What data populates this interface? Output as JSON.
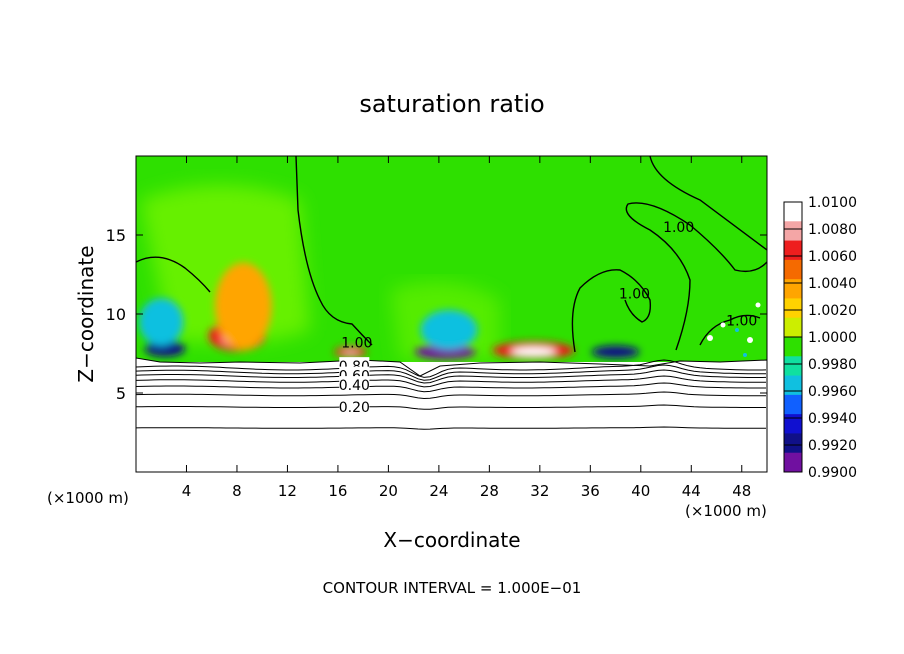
{
  "chart_data": {
    "type": "heatmap",
    "title": "saturation ratio",
    "xlabel": "X−coordinate",
    "ylabel": "Z−coordinate",
    "x_unit_left": "(×1000 m)",
    "x_unit_right": "(×1000 m)",
    "xlim": [
      0,
      50
    ],
    "ylim": [
      0,
      20
    ],
    "x_ticks": [
      4,
      8,
      12,
      16,
      20,
      24,
      28,
      32,
      36,
      40,
      44,
      48
    ],
    "y_ticks": [
      5,
      10,
      15
    ],
    "footer": "CONTOUR INTERVAL = 1.000E−01",
    "colorbar": {
      "min": 0.99,
      "max": 1.01,
      "labels": [
        "1.0100",
        "1.0080",
        "1.0060",
        "1.0040",
        "1.0020",
        "1.0000",
        "0.9980",
        "0.9960",
        "0.9940",
        "0.9920",
        "0.9900"
      ],
      "colors": [
        "#ffffff",
        "#f4a6a6",
        "#ee1e1e",
        "#f56a00",
        "#ffa500",
        "#ffd200",
        "#ccee00",
        "#2ee000",
        "#10e0a0",
        "#10c0e0",
        "#1060ff",
        "#1010d0",
        "#101088",
        "#7010a0"
      ]
    },
    "contour_labels": [
      {
        "text": "1.00",
        "x": 17.5,
        "z": 8.2
      },
      {
        "text": "1.00",
        "x": 43.0,
        "z": 15.5
      },
      {
        "text": "1.00",
        "x": 39.5,
        "z": 11.3
      },
      {
        "text": "1.00",
        "x": 48.0,
        "z": 9.6
      },
      {
        "text": "0.80",
        "x": 17.3,
        "z": 6.7
      },
      {
        "text": "0.60",
        "x": 17.3,
        "z": 6.1
      },
      {
        "text": "0.40",
        "x": 17.3,
        "z": 5.5
      },
      {
        "text": "0.20",
        "x": 17.3,
        "z": 4.1
      }
    ],
    "hotspots": [
      {
        "x": 8.0,
        "z": 8.6,
        "v": 1.0072,
        "w": 4.5,
        "h": 1.9
      },
      {
        "x": 8.5,
        "z": 10.5,
        "v": 1.0035,
        "w": 4.5,
        "h": 5.5
      },
      {
        "x": 31.5,
        "z": 7.7,
        "v": 1.0075,
        "w": 6.5,
        "h": 1.1
      },
      {
        "x": 17.0,
        "z": 7.6,
        "v": 1.0065,
        "w": 2.5,
        "h": 0.7
      },
      {
        "x": 2.3,
        "z": 7.8,
        "v": 0.9908,
        "w": 3.2,
        "h": 1.0
      },
      {
        "x": 24.5,
        "z": 7.6,
        "v": 0.9905,
        "w": 4.8,
        "h": 0.9
      },
      {
        "x": 38.0,
        "z": 7.6,
        "v": 0.9915,
        "w": 3.8,
        "h": 0.8
      },
      {
        "x": 24.8,
        "z": 9.0,
        "v": 0.9955,
        "w": 4.5,
        "h": 2.5
      },
      {
        "x": 2.0,
        "z": 9.5,
        "v": 0.9965,
        "w": 3.5,
        "h": 3.0
      }
    ]
  }
}
